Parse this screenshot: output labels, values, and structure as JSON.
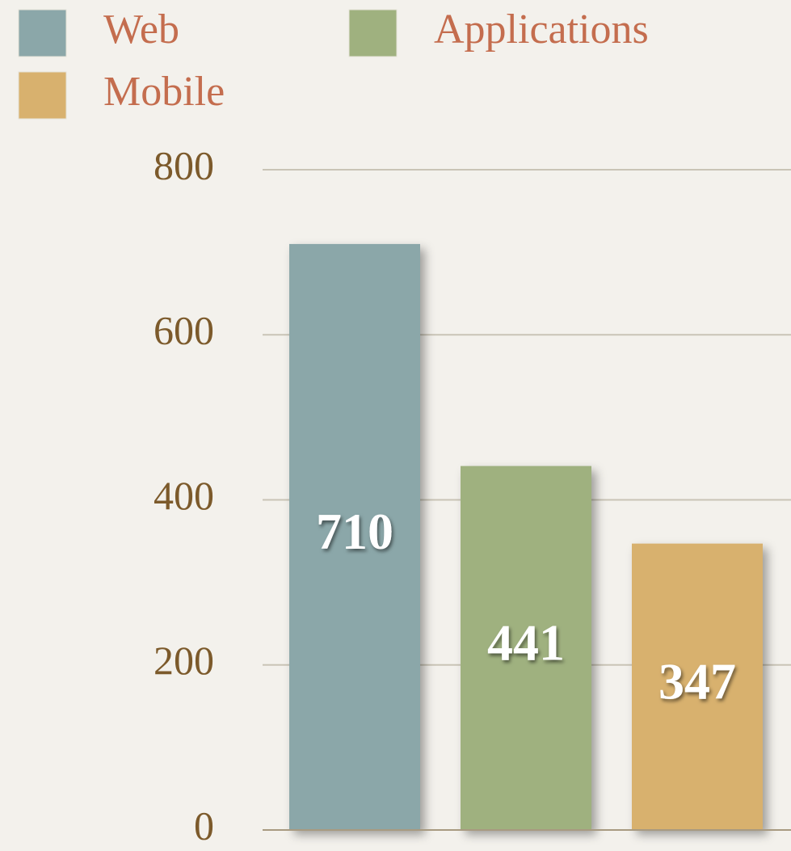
{
  "chart_data": {
    "type": "bar",
    "categories": [
      null
    ],
    "series": [
      {
        "name": "Web",
        "color": "#8ba7a9",
        "values": [
          710
        ]
      },
      {
        "name": "Applications",
        "color": "#9fb17f",
        "values": [
          441
        ]
      },
      {
        "name": "Mobile",
        "color": "#d8b16e",
        "values": [
          347
        ]
      }
    ],
    "ylim": [
      0,
      800
    ],
    "yticks": [
      0,
      200,
      400,
      600,
      800
    ],
    "grid": true,
    "legend": "top-left"
  }
}
